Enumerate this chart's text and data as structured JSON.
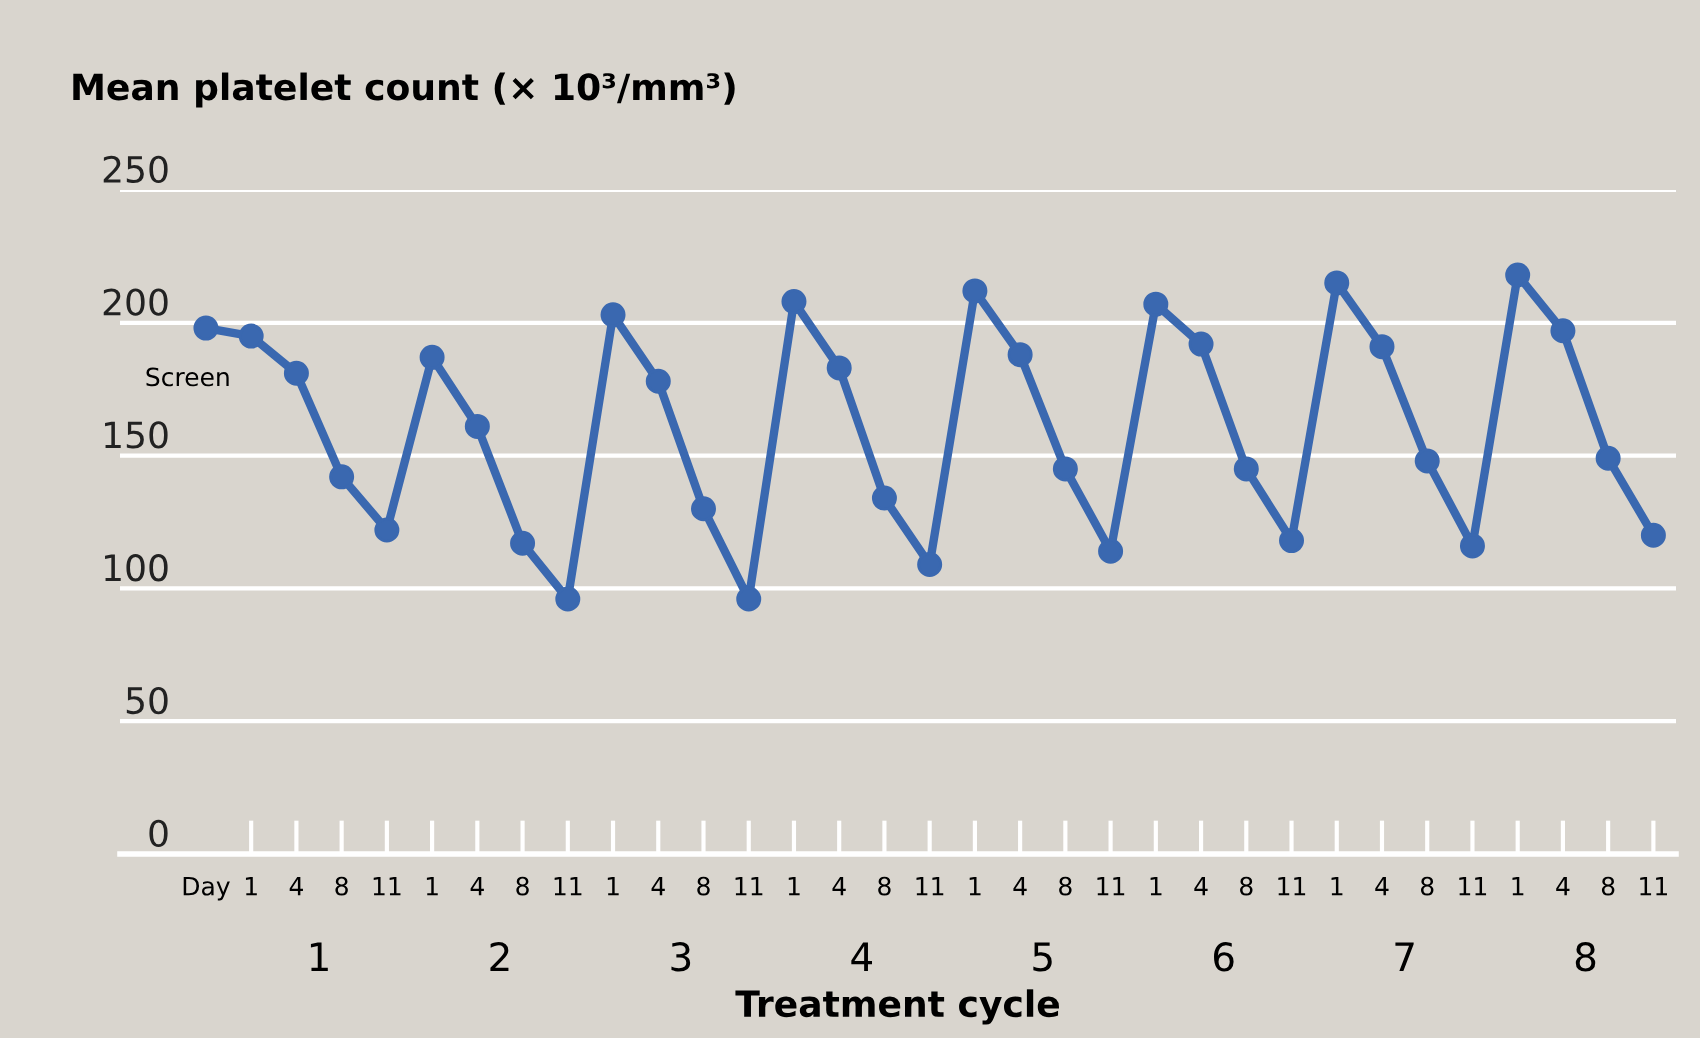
{
  "chart_data": {
    "type": "line",
    "title": "Mean platelet count (× 10³/mm³)",
    "xlabel": "Treatment cycle",
    "categories": [
      "Day",
      "1",
      "4",
      "8",
      "11",
      "1",
      "4",
      "8",
      "11",
      "1",
      "4",
      "8",
      "11",
      "1",
      "4",
      "8",
      "11",
      "1",
      "4",
      "8",
      "11",
      "1",
      "4",
      "8",
      "11",
      "1",
      "4",
      "8",
      "11",
      "1",
      "4",
      "8",
      "11"
    ],
    "series": [
      {
        "color": "#3a68b0",
        "values": [
          198,
          195,
          181,
          142,
          122,
          187,
          161,
          117,
          96,
          203,
          178,
          130,
          96,
          208,
          183,
          134,
          109,
          212,
          188,
          145,
          114,
          207,
          192,
          145,
          118,
          215,
          191,
          148,
          116,
          218,
          197,
          149,
          120
        ]
      }
    ],
    "annotations": [
      {
        "text": "Screen",
        "x": "Day",
        "y": 198
      },
      "1",
      "2",
      "3",
      "4",
      "5",
      "6",
      "7",
      "8"
    ],
    "ylim": [
      0,
      250
    ],
    "yticks": [
      0,
      50,
      100,
      150,
      200,
      250
    ],
    "grid": "y",
    "marker": "circle",
    "line_style": "solid"
  }
}
